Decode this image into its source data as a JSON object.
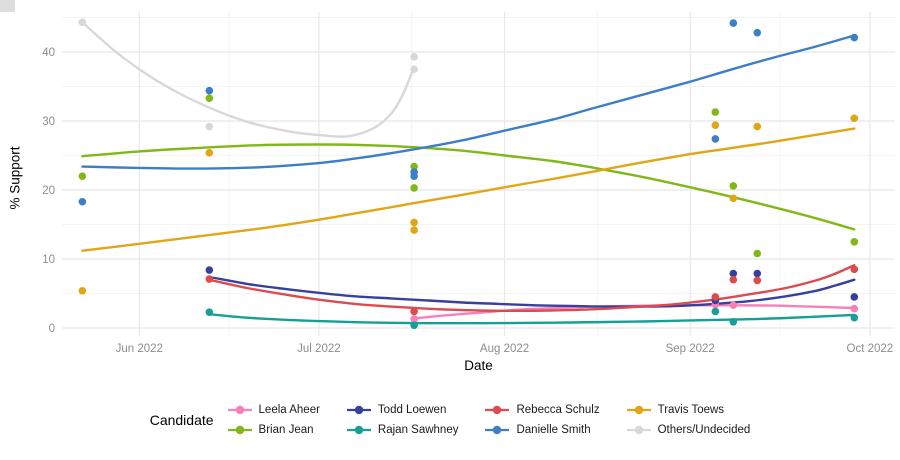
{
  "chart_data": {
    "type": "scatter",
    "title": "",
    "xlabel": "Date",
    "ylabel": "% Support",
    "legend_title": "Candidate",
    "x_unit": "days since 2022-05-20",
    "x_domain": [
      -0.9,
      138.2
    ],
    "y_domain": [
      -1.2,
      45.8
    ],
    "x_ticks": [
      {
        "day": 12,
        "label": "Jun 2022"
      },
      {
        "day": 42,
        "label": "Jul 2022"
      },
      {
        "day": 73,
        "label": "Aug 2022"
      },
      {
        "day": 104,
        "label": "Sep 2022"
      },
      {
        "day": 134,
        "label": "Oct 2022"
      }
    ],
    "x_minor_days": [
      27,
      57.5,
      88.5,
      119
    ],
    "y_ticks": [
      0,
      10,
      20,
      30,
      40
    ],
    "y_minor": [
      5,
      15,
      25,
      35,
      45
    ],
    "grid": {
      "major_color": "#e8e8e8",
      "minor_color": "#f4f4f4"
    },
    "legend_rows": [
      [
        "Leela Aheer",
        "Todd Loewen",
        "Rebecca Schulz",
        "Travis Toews"
      ],
      [
        "Brian Jean",
        "Rajan Sawhney",
        "Danielle Smith",
        "Others/Undecided"
      ]
    ],
    "series": [
      {
        "name": "Leela Aheer",
        "color": "#F781B7",
        "points": [
          [
            57.9,
            1.3
          ],
          [
            108.2,
            3.4
          ],
          [
            111.2,
            3.3
          ],
          [
            131.4,
            2.8
          ]
        ],
        "smooth": [
          [
            57.9,
            1.4
          ],
          [
            64,
            1.9
          ],
          [
            70,
            2.3
          ],
          [
            76,
            2.7
          ],
          [
            82,
            2.9
          ],
          [
            88,
            3.1
          ],
          [
            94,
            3.2
          ],
          [
            100,
            3.3
          ],
          [
            106,
            3.3
          ],
          [
            112,
            3.3
          ],
          [
            118,
            3.25
          ],
          [
            124,
            3.1
          ],
          [
            131.4,
            2.9
          ]
        ]
      },
      {
        "name": "Brian Jean",
        "color": "#80B818",
        "points": [
          [
            2.5,
            22.0
          ],
          [
            23.7,
            33.3
          ],
          [
            57.9,
            23.4
          ],
          [
            57.9,
            20.3
          ],
          [
            108.2,
            31.3
          ],
          [
            111.2,
            20.6
          ],
          [
            115.2,
            10.8
          ],
          [
            131.4,
            12.5
          ]
        ],
        "smooth": [
          [
            2.5,
            24.9
          ],
          [
            12,
            25.6
          ],
          [
            22,
            26.1
          ],
          [
            32,
            26.5
          ],
          [
            42,
            26.6
          ],
          [
            50,
            26.5
          ],
          [
            57.9,
            26.2
          ],
          [
            66,
            25.7
          ],
          [
            73,
            25.0
          ],
          [
            81,
            24.2
          ],
          [
            88,
            23.2
          ],
          [
            96,
            21.9
          ],
          [
            104,
            20.4
          ],
          [
            111,
            19.0
          ],
          [
            118,
            17.5
          ],
          [
            125,
            15.9
          ],
          [
            131.4,
            14.3
          ]
        ]
      },
      {
        "name": "Todd Loewen",
        "color": "#36409E",
        "points": [
          [
            23.7,
            8.4
          ],
          [
            108.2,
            4.0
          ],
          [
            111.2,
            7.9
          ],
          [
            115.2,
            7.9
          ],
          [
            131.4,
            4.5
          ]
        ],
        "smooth": [
          [
            23.7,
            7.4
          ],
          [
            30,
            6.4
          ],
          [
            36,
            5.7
          ],
          [
            42,
            5.1
          ],
          [
            48,
            4.6
          ],
          [
            54,
            4.3
          ],
          [
            60,
            4.0
          ],
          [
            66,
            3.7
          ],
          [
            72,
            3.5
          ],
          [
            78,
            3.3
          ],
          [
            84,
            3.2
          ],
          [
            90,
            3.1
          ],
          [
            96,
            3.1
          ],
          [
            102,
            3.2
          ],
          [
            108,
            3.5
          ],
          [
            114,
            3.9
          ],
          [
            120,
            4.6
          ],
          [
            125,
            5.4
          ],
          [
            128,
            6.1
          ],
          [
            131.4,
            7.0
          ]
        ]
      },
      {
        "name": "Rajan Sawhney",
        "color": "#14A097",
        "points": [
          [
            23.7,
            2.3
          ],
          [
            57.9,
            0.4
          ],
          [
            108.2,
            2.4
          ],
          [
            111.2,
            0.9
          ],
          [
            131.4,
            1.5
          ]
        ],
        "smooth": [
          [
            23.7,
            2.0
          ],
          [
            30,
            1.5
          ],
          [
            36,
            1.2
          ],
          [
            42,
            1.0
          ],
          [
            48,
            0.85
          ],
          [
            54,
            0.75
          ],
          [
            60,
            0.7
          ],
          [
            66,
            0.7
          ],
          [
            72,
            0.72
          ],
          [
            78,
            0.76
          ],
          [
            84,
            0.8
          ],
          [
            90,
            0.87
          ],
          [
            96,
            0.95
          ],
          [
            104,
            1.1
          ],
          [
            112,
            1.25
          ],
          [
            120,
            1.45
          ],
          [
            131.4,
            1.9
          ]
        ]
      },
      {
        "name": "Rebecca Schulz",
        "color": "#DB4B50",
        "points": [
          [
            23.7,
            7.1
          ],
          [
            57.9,
            2.4
          ],
          [
            108.2,
            4.5
          ],
          [
            111.2,
            7.0
          ],
          [
            115.2,
            6.9
          ],
          [
            131.4,
            8.5
          ]
        ],
        "smooth": [
          [
            23.7,
            7.0
          ],
          [
            30,
            5.8
          ],
          [
            36,
            4.9
          ],
          [
            42,
            4.1
          ],
          [
            48,
            3.5
          ],
          [
            54,
            3.1
          ],
          [
            60,
            2.8
          ],
          [
            66,
            2.6
          ],
          [
            72,
            2.5
          ],
          [
            78,
            2.5
          ],
          [
            84,
            2.6
          ],
          [
            90,
            2.8
          ],
          [
            96,
            3.1
          ],
          [
            102,
            3.5
          ],
          [
            108,
            4.1
          ],
          [
            114,
            4.9
          ],
          [
            120,
            5.8
          ],
          [
            125,
            6.9
          ],
          [
            128,
            7.8
          ],
          [
            131.4,
            9.1
          ]
        ]
      },
      {
        "name": "Danielle Smith",
        "color": "#3D7EC8",
        "points": [
          [
            2.5,
            18.3
          ],
          [
            23.7,
            34.4
          ],
          [
            57.9,
            22.6
          ],
          [
            57.9,
            22.0
          ],
          [
            108.2,
            27.4
          ],
          [
            111.2,
            44.2
          ],
          [
            115.2,
            42.8
          ],
          [
            131.4,
            42.1
          ]
        ],
        "smooth": [
          [
            2.5,
            23.4
          ],
          [
            12,
            23.2
          ],
          [
            22,
            23.1
          ],
          [
            32,
            23.3
          ],
          [
            42,
            23.9
          ],
          [
            50,
            24.8
          ],
          [
            57.9,
            25.9
          ],
          [
            66,
            27.2
          ],
          [
            73,
            28.6
          ],
          [
            81,
            30.2
          ],
          [
            88,
            31.9
          ],
          [
            96,
            33.8
          ],
          [
            104,
            35.7
          ],
          [
            111,
            37.5
          ],
          [
            118,
            39.2
          ],
          [
            125,
            40.8
          ],
          [
            131.4,
            42.4
          ]
        ]
      },
      {
        "name": "Travis Toews",
        "color": "#E1A616",
        "points": [
          [
            2.5,
            5.4
          ],
          [
            23.7,
            25.4
          ],
          [
            57.9,
            15.3
          ],
          [
            57.9,
            14.2
          ],
          [
            108.2,
            29.4
          ],
          [
            111.2,
            18.8
          ],
          [
            115.2,
            29.2
          ],
          [
            131.4,
            30.4
          ]
        ],
        "smooth": [
          [
            2.5,
            11.2
          ],
          [
            12,
            12.2
          ],
          [
            22,
            13.3
          ],
          [
            32,
            14.4
          ],
          [
            42,
            15.7
          ],
          [
            50,
            16.9
          ],
          [
            57.9,
            18.1
          ],
          [
            66,
            19.3
          ],
          [
            73,
            20.4
          ],
          [
            81,
            21.6
          ],
          [
            88,
            22.7
          ],
          [
            96,
            24.0
          ],
          [
            104,
            25.2
          ],
          [
            111,
            26.1
          ],
          [
            118,
            27.0
          ],
          [
            125,
            28.0
          ],
          [
            131.4,
            28.9
          ]
        ]
      },
      {
        "name": "Others/Undecided",
        "color": "#D8D8D8",
        "points": [
          [
            2.5,
            44.3
          ],
          [
            23.7,
            29.2
          ],
          [
            57.9,
            39.3
          ],
          [
            57.9,
            37.5
          ]
        ],
        "smooth": [
          [
            2.5,
            44.3
          ],
          [
            9,
            39.4
          ],
          [
            16,
            35.3
          ],
          [
            23,
            32.2
          ],
          [
            30,
            29.9
          ],
          [
            37,
            28.5
          ],
          [
            43,
            27.9
          ],
          [
            47,
            27.8
          ],
          [
            51,
            28.9
          ],
          [
            54,
            31.0
          ],
          [
            56,
            33.8
          ],
          [
            57.9,
            37.8
          ]
        ]
      }
    ]
  }
}
